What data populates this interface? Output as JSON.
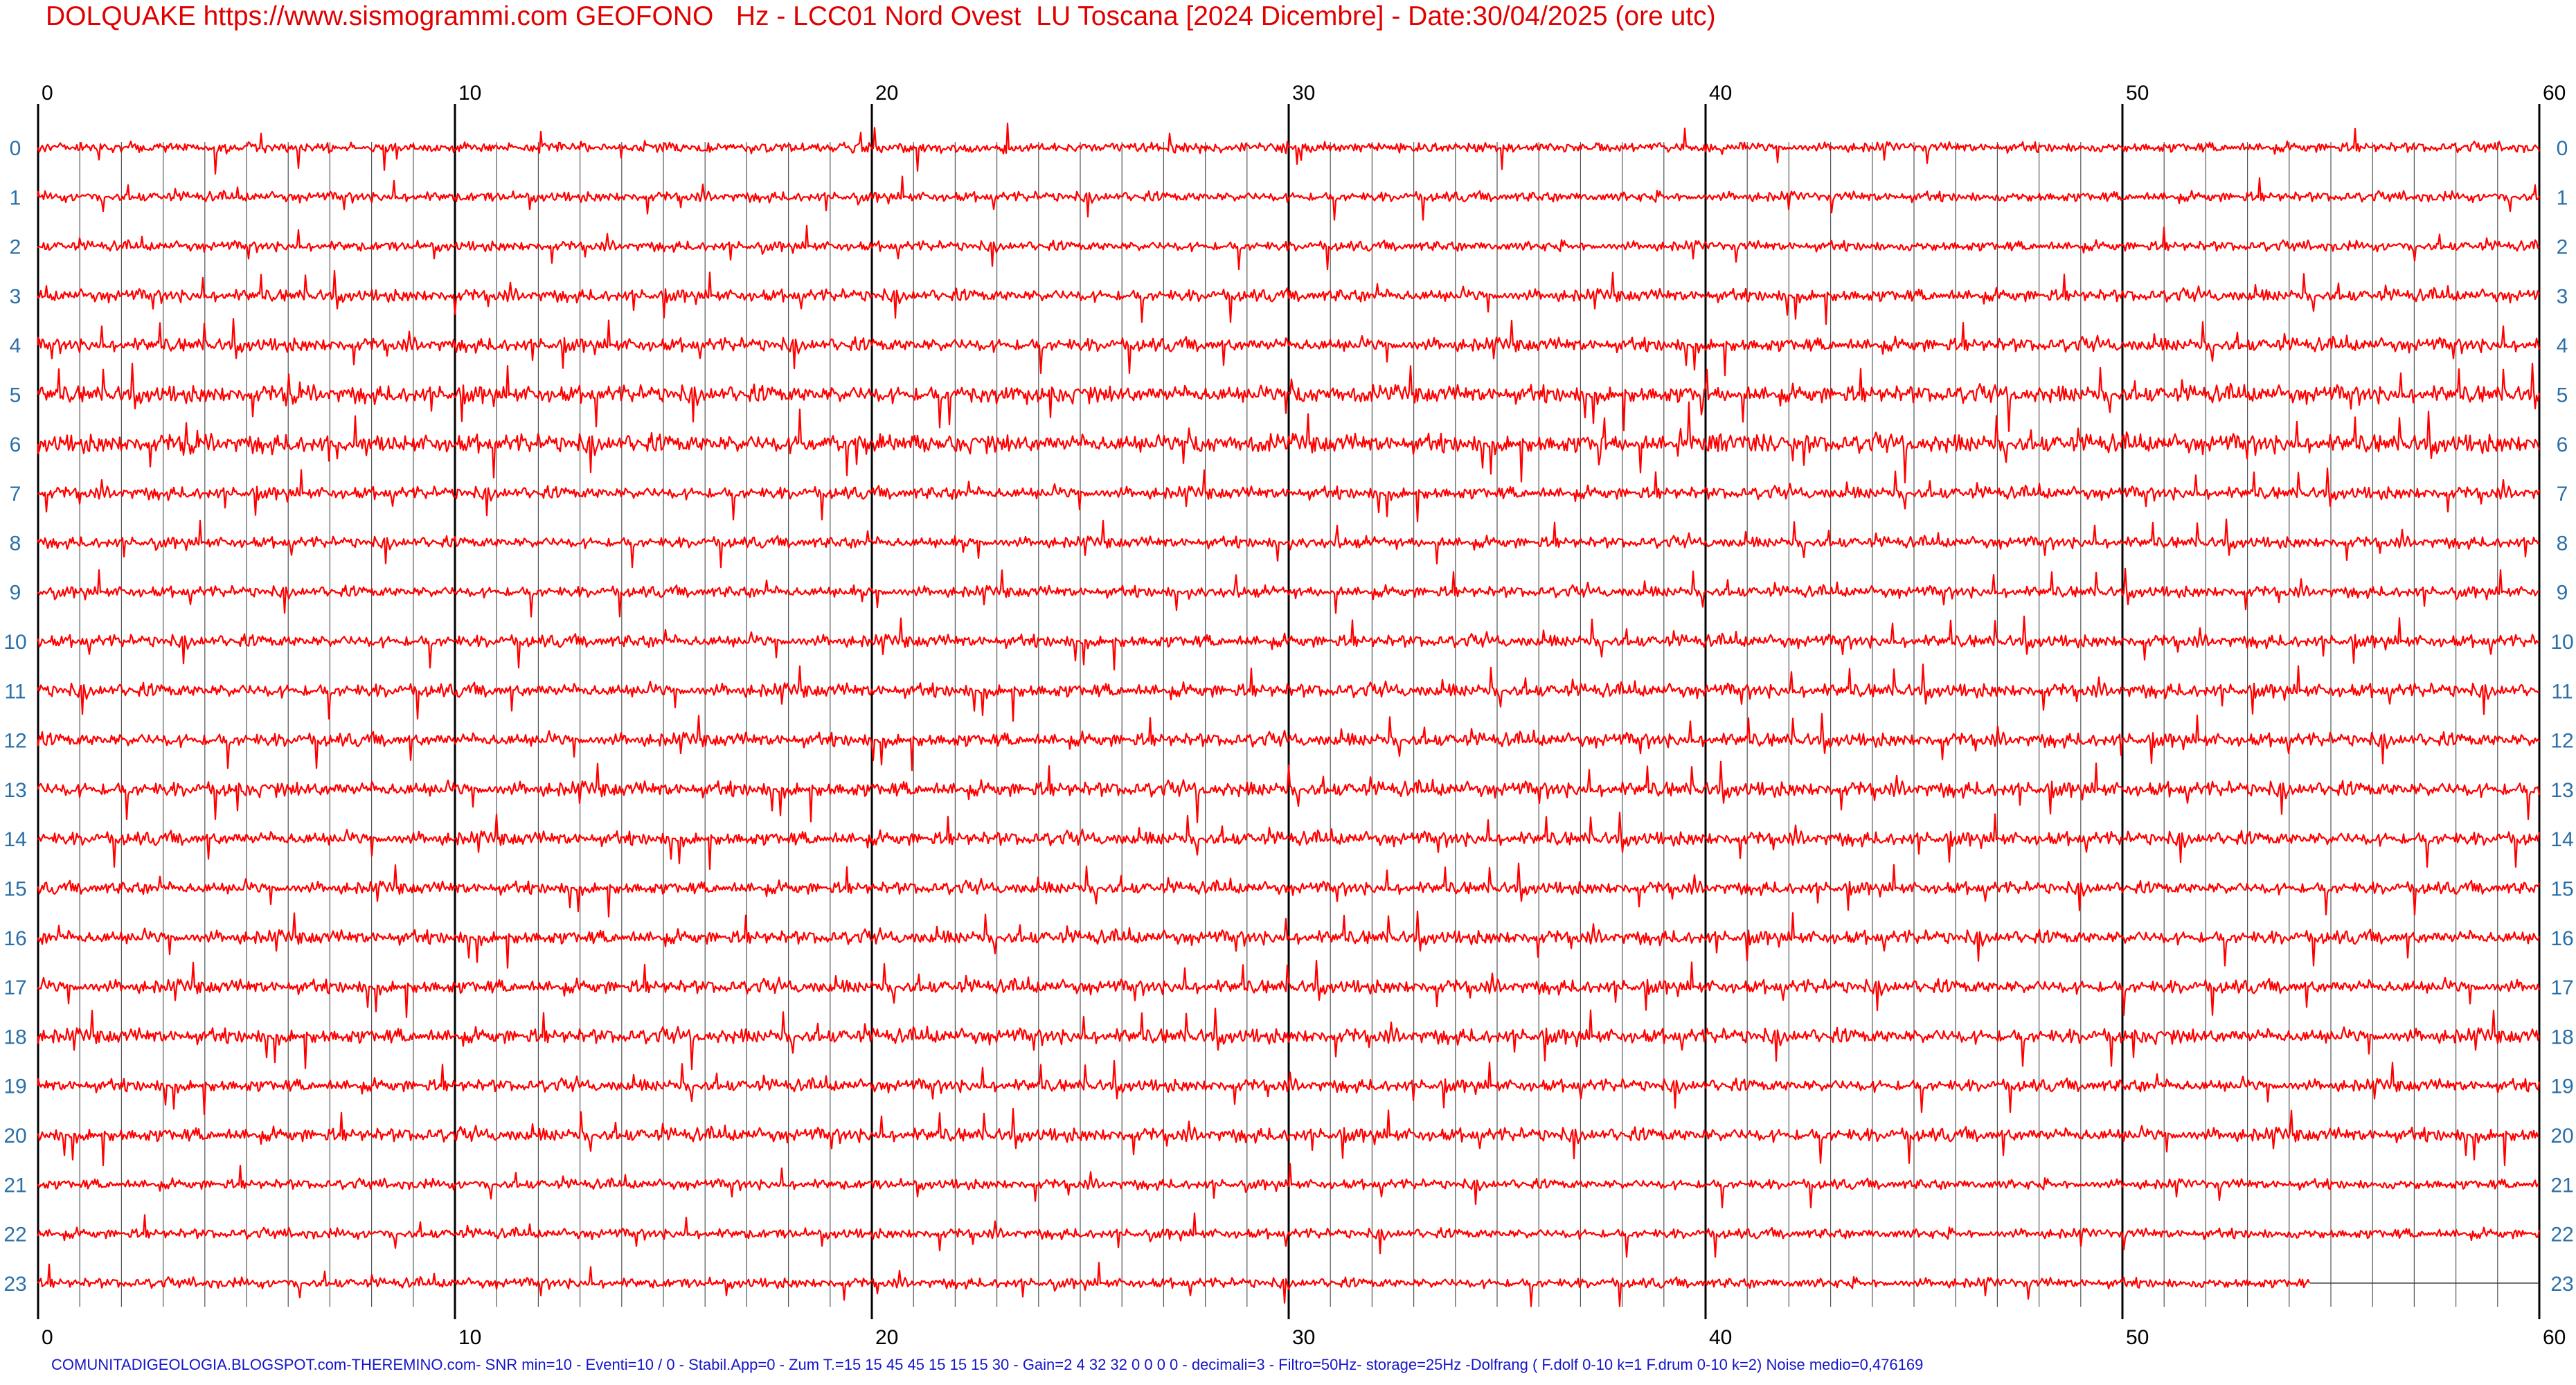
{
  "title": "DOLQUAKE https://www.sismogrammi.com GEOFONO   Hz - LCC01 Nord Ovest  LU Toscana [2024 Dicembre] - Date:30/04/2025 (ore utc)",
  "footer": "COMUNITADIGEOLOGIA.BLOGSPOT.com-THEREMINO.com- SNR min=10 - Eventi=10 / 0 - Stabil.App=0 - Zum T.=15 15 45 45 15 15 15 30 - Gain=2 4 32 32 0 0 0 0 - decimali=3 - Filtro=50Hz- storage=25Hz -Dolfrang ( F.dolf 0-10 k=1 F.drum 0-10 k=2) Noise medio=0,476169",
  "colors": {
    "trace": "#ff0000",
    "title": "#e00000",
    "footer": "#1515c8",
    "hour_label": "#2a6fa8",
    "major_grid": "#000000",
    "minor_grid": "#555555"
  },
  "chart_data": {
    "type": "line",
    "title": "DOLQUAKE https://www.sismogrammi.com GEOFONO   Hz - LCC01 Nord Ovest  LU Toscana [2024 Dicembre] - Date:30/04/2025 (ore utc)",
    "x_range": [
      0,
      60
    ],
    "x_major_ticks": [
      "0",
      "10",
      "20",
      "30",
      "40",
      "50",
      "60"
    ],
    "x_minor_step": 1,
    "rows": [
      "0",
      "1",
      "2",
      "3",
      "4",
      "5",
      "6",
      "7",
      "8",
      "9",
      "10",
      "11",
      "12",
      "13",
      "14",
      "15",
      "16",
      "17",
      "18",
      "19",
      "20",
      "21",
      "22",
      "23"
    ],
    "last_row_end_minute": 54.5,
    "trace_color": "#ff0000",
    "grid": true
  }
}
